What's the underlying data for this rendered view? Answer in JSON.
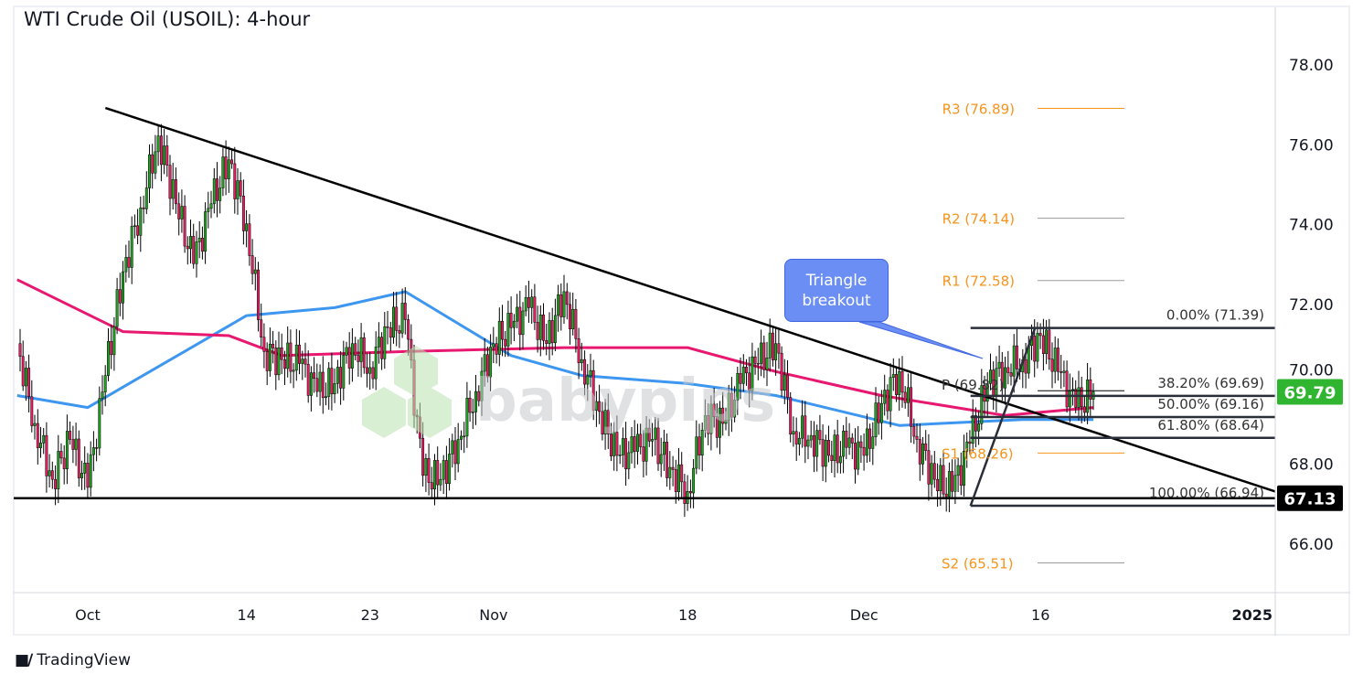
{
  "header": {
    "title": "WTI Crude Oil (USOIL): 4-hour"
  },
  "footer": {
    "brand": "TradingView"
  },
  "watermark": {
    "text": "babypips"
  },
  "annotation": {
    "text": "Triangle breakout"
  },
  "colors": {
    "up": "#1fa51f",
    "down": "#e91e63",
    "ma_fast": "#3d96f0",
    "ma_slow": "#e8176f",
    "pivot": "#f7931a",
    "last_price": "#2fb52f",
    "level_label": "#000000",
    "callout": "#6b8ef5"
  },
  "chart_data": {
    "type": "candlestick",
    "title": "WTI Crude Oil (USOIL): 4-hour",
    "ylim": [
      64.7,
      79.3
    ],
    "y_ticks": [
      "66.00",
      "68.00",
      "70.00",
      "72.00",
      "74.00",
      "76.00",
      "78.00"
    ],
    "x_ticks": [
      {
        "label": "Oct",
        "date": "2024-10-01"
      },
      {
        "label": "14",
        "date": "2024-10-14"
      },
      {
        "label": "23",
        "date": "2024-10-23"
      },
      {
        "label": "Nov",
        "date": "2024-11-01"
      },
      {
        "label": "18",
        "date": "2024-11-18"
      },
      {
        "label": "Dec",
        "date": "2024-12-02"
      },
      {
        "label": "16",
        "date": "2024-12-16"
      },
      {
        "label": "2025",
        "date": "2025-01-01"
      }
    ],
    "daily_closes": [
      [
        "2024-09-25",
        71.0
      ],
      [
        "2024-09-26",
        69.0
      ],
      [
        "2024-09-27",
        67.6
      ],
      [
        "2024-09-30",
        68.6
      ],
      [
        "2024-10-01",
        67.4
      ],
      [
        "2024-10-02",
        70.2
      ],
      [
        "2024-10-03",
        72.8
      ],
      [
        "2024-10-04",
        74.4
      ],
      [
        "2024-10-07",
        76.2
      ],
      [
        "2024-10-08",
        74.5
      ],
      [
        "2024-10-09",
        73.0
      ],
      [
        "2024-10-10",
        74.5
      ],
      [
        "2024-10-11",
        75.6
      ],
      [
        "2024-10-14",
        74.0
      ],
      [
        "2024-10-15",
        70.8
      ],
      [
        "2024-10-16",
        70.6
      ],
      [
        "2024-10-17",
        70.5
      ],
      [
        "2024-10-18",
        69.8
      ],
      [
        "2024-10-21",
        70.0
      ],
      [
        "2024-10-22",
        71.0
      ],
      [
        "2024-10-23",
        70.4
      ],
      [
        "2024-10-24",
        71.4
      ],
      [
        "2024-10-25",
        71.6
      ],
      [
        "2024-10-28",
        67.7
      ],
      [
        "2024-10-29",
        67.6
      ],
      [
        "2024-10-30",
        68.6
      ],
      [
        "2024-10-31",
        69.8
      ],
      [
        "2024-11-01",
        71.0
      ],
      [
        "2024-11-04",
        71.4
      ],
      [
        "2024-11-05",
        71.9
      ],
      [
        "2024-11-06",
        71.0
      ],
      [
        "2024-11-07",
        72.3
      ],
      [
        "2024-11-08",
        70.6
      ],
      [
        "2024-11-11",
        69.3
      ],
      [
        "2024-11-12",
        68.2
      ],
      [
        "2024-11-13",
        68.3
      ],
      [
        "2024-11-14",
        68.6
      ],
      [
        "2024-11-15",
        67.9
      ],
      [
        "2024-11-18",
        67.3
      ],
      [
        "2024-11-19",
        69.2
      ],
      [
        "2024-11-20",
        69.0
      ],
      [
        "2024-11-21",
        70.0
      ],
      [
        "2024-11-22",
        70.5
      ],
      [
        "2024-11-25",
        71.0
      ],
      [
        "2024-11-26",
        68.8
      ],
      [
        "2024-11-27",
        68.7
      ],
      [
        "2024-11-28",
        68.2
      ],
      [
        "2024-11-29",
        68.4
      ],
      [
        "2024-12-02",
        68.2
      ],
      [
        "2024-12-03",
        69.5
      ],
      [
        "2024-12-04",
        70.3
      ],
      [
        "2024-12-05",
        68.6
      ],
      [
        "2024-12-06",
        67.6
      ],
      [
        "2024-12-09",
        67.3
      ],
      [
        "2024-12-10",
        68.5
      ],
      [
        "2024-12-11",
        70.0
      ],
      [
        "2024-12-12",
        70.4
      ],
      [
        "2024-12-13",
        70.6
      ],
      [
        "2024-12-16",
        71.2
      ],
      [
        "2024-12-17",
        70.3
      ],
      [
        "2024-12-18",
        69.4
      ],
      [
        "2024-12-19",
        69.79
      ]
    ],
    "series": [
      {
        "color": "#3d96f0",
        "points": [
          [
            "2024-09-25",
            69.7
          ],
          [
            "2024-10-01",
            69.4
          ],
          [
            "2024-10-14",
            71.7
          ],
          [
            "2024-10-21",
            71.9
          ],
          [
            "2024-10-25",
            72.3
          ],
          [
            "2024-11-04",
            70.7
          ],
          [
            "2024-11-08",
            70.2
          ],
          [
            "2024-11-18",
            70.0
          ],
          [
            "2024-11-25",
            69.7
          ],
          [
            "2024-12-04",
            68.95
          ],
          [
            "2024-12-13",
            69.1
          ],
          [
            "2024-12-19",
            69.1
          ]
        ]
      },
      {
        "color": "#e8176f",
        "points": [
          [
            "2024-09-25",
            72.6
          ],
          [
            "2024-10-03",
            71.3
          ],
          [
            "2024-10-11",
            71.2
          ],
          [
            "2024-10-16",
            70.7
          ],
          [
            "2024-10-25",
            70.8
          ],
          [
            "2024-11-07",
            70.9
          ],
          [
            "2024-11-18",
            70.9
          ],
          [
            "2024-11-25",
            70.3
          ],
          [
            "2024-12-03",
            69.7
          ],
          [
            "2024-12-12",
            69.2
          ],
          [
            "2024-12-19",
            69.4
          ]
        ]
      }
    ],
    "trendline": [
      [
        "2024-10-02",
        76.9
      ],
      [
        "2025-01-06",
        67.05
      ]
    ],
    "support_level": 67.13,
    "fib_swing": [
      [
        "2024-12-09",
        66.94
      ],
      [
        "2024-12-16",
        71.39
      ]
    ],
    "fib_levels": [
      {
        "label": "0.00% (71.39)",
        "price": 71.39
      },
      {
        "label": "38.20% (69.69)",
        "price": 69.69
      },
      {
        "label": "50.00% (69.16)",
        "price": 69.16
      },
      {
        "label": "61.80% (68.64)",
        "price": 68.64
      },
      {
        "label": "100.00% (66.94)",
        "price": 66.94
      }
    ],
    "pivots": [
      {
        "label": "R3 (76.89)",
        "price": 76.89,
        "line": "#f7931a"
      },
      {
        "label": "R2 (74.14)",
        "price": 74.14,
        "line": "#9a9a9a"
      },
      {
        "label": "R1 (72.58)",
        "price": 72.58,
        "line": "#9a9a9a"
      },
      {
        "label": "P (69.82)",
        "price": 69.82,
        "line": "#000000"
      },
      {
        "label": "S1 (68.26)",
        "price": 68.26,
        "line": "#f7931a"
      },
      {
        "label": "S2 (65.51)",
        "price": 65.51,
        "line": "#9a9a9a"
      }
    ],
    "price_labels": [
      {
        "text": "69.79",
        "price": 69.79,
        "bg": "#2fb52f"
      },
      {
        "text": "67.13",
        "price": 67.13,
        "bg": "#000000"
      }
    ]
  }
}
